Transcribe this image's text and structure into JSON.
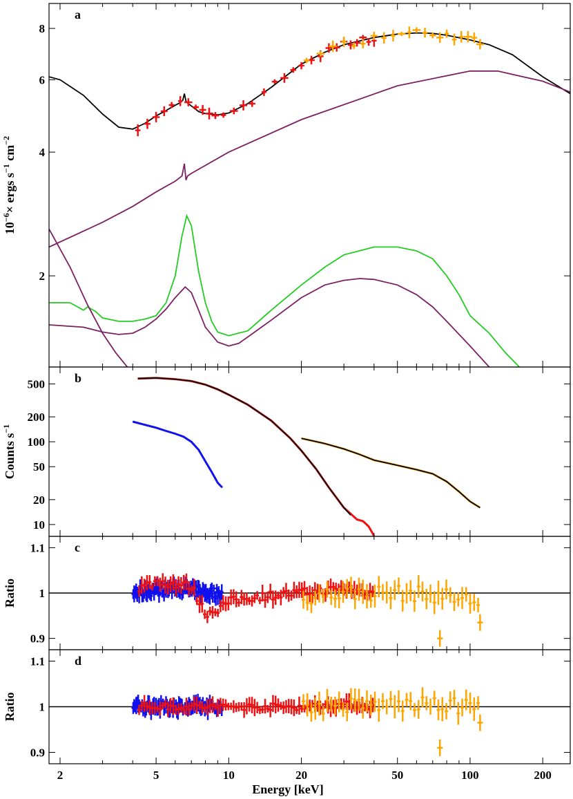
{
  "colors": {
    "total": "#000000",
    "component": "#7b1f63",
    "green": "#22cc22",
    "red": "#ee1111",
    "blue": "#1111ee",
    "orange": "#ffa500"
  },
  "shared_x": {
    "label": "Energy [keV]",
    "scale": "log",
    "xlim": [
      1.8,
      260
    ],
    "ticks": [
      2,
      5,
      10,
      20,
      50,
      100,
      200
    ],
    "tick_labels": [
      "2",
      "5",
      "10",
      "20",
      "50",
      "100",
      "200"
    ]
  },
  "chart_data": [
    {
      "id": "a",
      "panel_label": "a",
      "type": "line",
      "ylabel_parts": [
        "10",
        "−6",
        "× ergs  s",
        "−1",
        " cm",
        "−2"
      ],
      "yscale": "log",
      "ylim": [
        1.2,
        9.2
      ],
      "yticks": [
        2,
        4,
        6,
        8
      ],
      "ytick_labels": [
        "2",
        "4",
        "6",
        "8"
      ],
      "series": [
        {
          "color_key": "total",
          "x": [
            1.8,
            2,
            2.5,
            3,
            3.5,
            4,
            4.5,
            5,
            5.5,
            6,
            6.3,
            6.45,
            6.55,
            6.65,
            6.8,
            7,
            7.5,
            8,
            9,
            10,
            12,
            15,
            20,
            25,
            30,
            40,
            50,
            60,
            70,
            80,
            100,
            120,
            150,
            200,
            260
          ],
          "y": [
            6.1,
            6.0,
            5.5,
            4.95,
            4.6,
            4.55,
            4.7,
            4.9,
            5.05,
            5.2,
            5.28,
            5.35,
            5.55,
            5.32,
            5.25,
            5.18,
            5.02,
            4.96,
            4.93,
            4.98,
            5.25,
            5.75,
            6.55,
            7.0,
            7.3,
            7.6,
            7.75,
            7.8,
            7.78,
            7.7,
            7.5,
            7.3,
            6.9,
            6.1,
            5.55
          ]
        },
        {
          "color_key": "component",
          "x": [
            1.8,
            3,
            4,
            5,
            6,
            6.4,
            6.55,
            6.65,
            6.75,
            7,
            10,
            20,
            50,
            100,
            130,
            200,
            260
          ],
          "y": [
            2.35,
            2.7,
            2.95,
            3.2,
            3.4,
            3.5,
            3.75,
            3.42,
            3.5,
            3.55,
            4.0,
            4.8,
            5.8,
            6.3,
            6.3,
            5.95,
            5.6
          ]
        },
        {
          "color_key": "green",
          "x": [
            1.8,
            2.2,
            2.5,
            2.6,
            2.8,
            3,
            3.5,
            4,
            4.5,
            5,
            5.5,
            6,
            6.4,
            6.7,
            7,
            7.5,
            8,
            8.5,
            9,
            10,
            12,
            15,
            20,
            25,
            30,
            40,
            50,
            60,
            70,
            80,
            90,
            100,
            120,
            140,
            160,
            180
          ],
          "y": [
            1.72,
            1.72,
            1.65,
            1.68,
            1.64,
            1.58,
            1.55,
            1.55,
            1.57,
            1.6,
            1.72,
            2.0,
            2.5,
            2.8,
            2.65,
            2.05,
            1.72,
            1.55,
            1.46,
            1.43,
            1.47,
            1.65,
            1.9,
            2.1,
            2.25,
            2.35,
            2.35,
            2.3,
            2.2,
            2.0,
            1.8,
            1.6,
            1.45,
            1.3,
            1.2,
            1.1
          ]
        },
        {
          "color_key": "component",
          "x": [
            1.8,
            2.5,
            3,
            3.5,
            4,
            4.5,
            5,
            5.5,
            6,
            6.6,
            7,
            7.5,
            8,
            9,
            10,
            11,
            12,
            15,
            20,
            25,
            30,
            35,
            40,
            50,
            60,
            70,
            80,
            100,
            120,
            140
          ],
          "y": [
            1.52,
            1.5,
            1.46,
            1.44,
            1.45,
            1.5,
            1.57,
            1.66,
            1.77,
            1.88,
            1.82,
            1.65,
            1.5,
            1.38,
            1.35,
            1.37,
            1.42,
            1.56,
            1.77,
            1.9,
            1.95,
            1.97,
            1.96,
            1.9,
            1.8,
            1.68,
            1.55,
            1.35,
            1.2,
            1.1
          ]
        },
        {
          "color_key": "component",
          "x": [
            1.8,
            2.2,
            2.6,
            3,
            3.4,
            3.8,
            4.2
          ],
          "y": [
            2.6,
            2.1,
            1.7,
            1.45,
            1.3,
            1.2,
            1.12
          ]
        }
      ],
      "data_series": [
        {
          "color_key": "red",
          "x_range": [
            4,
            40
          ],
          "sparse_x": [
            4.2,
            4.6,
            5.0,
            5.4,
            5.8,
            6.3,
            6.8,
            7.3,
            7.8,
            8.3,
            8.8,
            9.5,
            10.5,
            11.5,
            12.5,
            14,
            15.5,
            17,
            18.5,
            20,
            22,
            24,
            26,
            28,
            30,
            32,
            34,
            36,
            38,
            40
          ]
        },
        {
          "color_key": "orange",
          "x_range": [
            20,
            110
          ],
          "sparse_x": [
            21,
            24,
            27,
            30,
            33,
            36,
            40,
            44,
            48,
            52,
            56,
            60,
            65,
            70,
            75,
            80,
            86,
            92,
            98,
            104,
            110
          ]
        }
      ]
    },
    {
      "id": "b",
      "panel_label": "b",
      "type": "line",
      "ylabel_parts": [
        "Counts s",
        "−1"
      ],
      "yscale": "log",
      "ylim": [
        7.2,
        800
      ],
      "yticks": [
        10,
        20,
        50,
        100,
        200,
        500
      ],
      "ytick_labels": [
        "10",
        "20",
        "50",
        "100",
        "200",
        "500"
      ],
      "series": [
        {
          "color_key": "red",
          "x": [
            4.2,
            5,
            6,
            7,
            8,
            9,
            10,
            12,
            15,
            18,
            20,
            23,
            26,
            30,
            34,
            36,
            38,
            40
          ],
          "y": [
            580,
            590,
            570,
            540,
            490,
            430,
            370,
            280,
            180,
            110,
            78,
            47,
            28,
            16,
            11.5,
            11,
            9.5,
            7.3
          ]
        },
        {
          "color_key": "total",
          "x": [
            4.2,
            5,
            6,
            7,
            8,
            9,
            10,
            12,
            15,
            18,
            20,
            23,
            26,
            30,
            32
          ],
          "y": [
            580,
            590,
            570,
            540,
            490,
            430,
            370,
            280,
            180,
            110,
            78,
            47,
            28,
            16,
            13
          ]
        },
        {
          "color_key": "blue",
          "x": [
            4,
            4.5,
            5,
            5.5,
            6,
            6.5,
            7,
            7.5,
            8,
            8.5,
            9,
            9.4
          ],
          "y": [
            175,
            160,
            148,
            135,
            125,
            115,
            100,
            80,
            58,
            43,
            32,
            28
          ]
        },
        {
          "color_key": "orange",
          "x": [
            20,
            25,
            30,
            35,
            40,
            50,
            60,
            70,
            80,
            90,
            100,
            110
          ],
          "y": [
            110,
            95,
            82,
            70,
            60,
            52,
            46,
            41,
            33,
            25,
            19,
            16
          ]
        },
        {
          "color_key": "total",
          "x": [
            20,
            25,
            30,
            35,
            40,
            50,
            60,
            70,
            80,
            90,
            100,
            110
          ],
          "y": [
            110,
            95,
            82,
            70,
            60,
            52,
            46,
            41,
            33,
            25,
            19,
            16
          ]
        }
      ]
    },
    {
      "id": "c",
      "panel_label": "c",
      "type": "scatter",
      "ylabel": "Ratio",
      "yscale": "linear",
      "ylim": [
        0.875,
        1.125
      ],
      "yticks": [
        0.9,
        1,
        1.1
      ],
      "ytick_labels": [
        "0.9",
        "1",
        "1.1"
      ],
      "reference_line": 1,
      "data_series": [
        {
          "color_key": "blue",
          "x_range": [
            4,
            9.4
          ],
          "scatter": 0.025,
          "trend": [
            [
              4,
              1.0
            ],
            [
              6,
              1.012
            ],
            [
              8,
              1.0
            ],
            [
              9.4,
              1.0
            ]
          ]
        },
        {
          "color_key": "red",
          "x_range": [
            4.2,
            40
          ],
          "scatter": 0.02,
          "trend": [
            [
              4.2,
              1.01
            ],
            [
              5,
              1.025
            ],
            [
              6,
              1.02
            ],
            [
              7,
              1.015
            ],
            [
              8,
              0.955
            ],
            [
              9,
              0.965
            ],
            [
              10,
              0.98
            ],
            [
              12,
              0.99
            ],
            [
              15,
              0.995
            ],
            [
              20,
              1.0
            ],
            [
              25,
              1.005
            ],
            [
              30,
              1.01
            ],
            [
              40,
              1.0
            ]
          ]
        },
        {
          "color_key": "orange",
          "x_range": [
            20,
            110
          ],
          "scatter": 0.035,
          "trend": [
            [
              20,
              0.99
            ],
            [
              30,
              1.0
            ],
            [
              50,
              1.0
            ],
            [
              75,
              0.995
            ],
            [
              110,
              0.98
            ]
          ],
          "outliers": [
            [
              75,
              0.9
            ],
            [
              110,
              0.935
            ]
          ]
        }
      ]
    },
    {
      "id": "d",
      "panel_label": "d",
      "type": "scatter",
      "ylabel": "Ratio",
      "yscale": "linear",
      "ylim": [
        0.875,
        1.125
      ],
      "yticks": [
        0.9,
        1,
        1.1
      ],
      "ytick_labels": [
        "0.9",
        "1",
        "1.1"
      ],
      "reference_line": 1,
      "data_series": [
        {
          "color_key": "blue",
          "x_range": [
            4,
            9.4
          ],
          "scatter": 0.02,
          "trend": [
            [
              4,
              1.0
            ],
            [
              9.4,
              1.0
            ]
          ]
        },
        {
          "color_key": "red",
          "x_range": [
            4.2,
            40
          ],
          "scatter": 0.015,
          "trend": [
            [
              4.2,
              1.0
            ],
            [
              10,
              1.0
            ],
            [
              20,
              1.0
            ],
            [
              30,
              1.005
            ],
            [
              40,
              1.0
            ]
          ]
        },
        {
          "color_key": "orange",
          "x_range": [
            20,
            110
          ],
          "scatter": 0.035,
          "trend": [
            [
              20,
              1.0
            ],
            [
              50,
              1.005
            ],
            [
              110,
              1.0
            ]
          ],
          "outliers": [
            [
              75,
              0.91
            ],
            [
              110,
              0.965
            ]
          ]
        }
      ]
    }
  ]
}
